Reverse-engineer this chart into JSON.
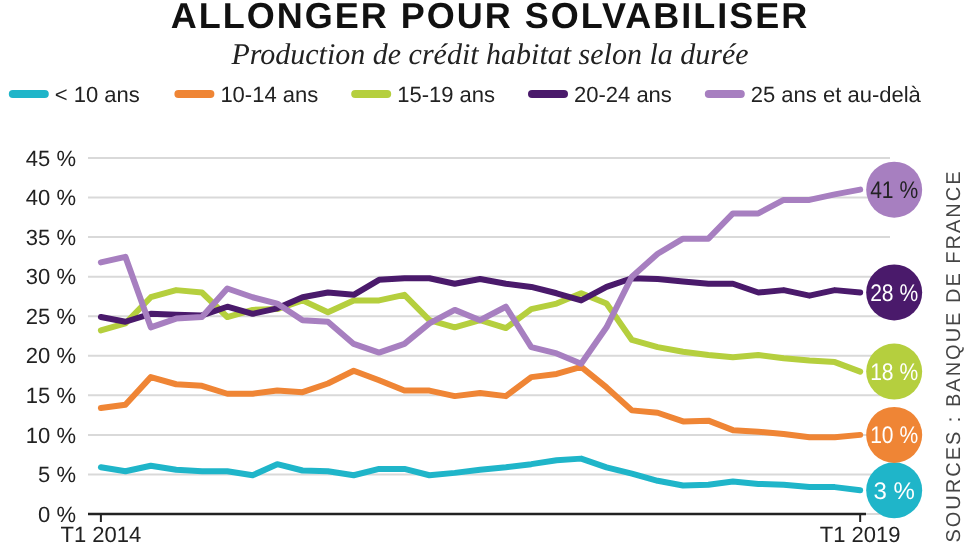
{
  "chart_data": {
    "type": "line",
    "title": "ALLONGER POUR SOLVABILISER",
    "subtitle": "Production de crédit habitat selon la durée",
    "x": [
      "2014-01",
      "2014-03",
      "2014-05",
      "2014-07",
      "2014-09",
      "2014-11",
      "2015-01",
      "2015-03",
      "2015-05",
      "2015-07",
      "2015-09",
      "2015-11",
      "2016-01",
      "2016-03",
      "2016-05",
      "2016-07",
      "2016-09",
      "2016-11",
      "2017-01",
      "2017-03",
      "2017-05",
      "2017-07",
      "2017-09",
      "2017-11",
      "2018-01",
      "2018-03",
      "2018-05",
      "2018-07",
      "2018-09",
      "2018-11",
      "2019-01"
    ],
    "series": [
      {
        "name": "< 10 ans",
        "color": "#1fb5c9",
        "values": [
          5.9,
          5.4,
          6.1,
          5.6,
          5.4,
          5.4,
          4.9,
          6.3,
          5.5,
          5.4,
          4.9,
          5.7,
          5.7,
          4.9,
          5.2,
          5.6,
          5.9,
          6.3,
          6.8,
          7.0,
          5.9,
          5.1,
          4.2,
          3.6,
          3.7,
          4.1,
          3.8,
          3.7,
          3.4,
          3.4,
          3
        ],
        "value_labels": [
          null,
          null,
          null,
          null,
          null,
          null,
          null,
          null,
          null,
          null,
          null,
          null,
          null,
          null,
          null,
          null,
          null,
          null,
          null,
          null,
          null,
          null,
          null,
          null,
          null,
          null,
          null,
          null,
          null,
          null,
          "3 %"
        ]
      },
      {
        "name": "10-14 ans",
        "color": "#ef8535",
        "values": [
          13.4,
          13.8,
          17.3,
          16.4,
          16.2,
          15.2,
          15.2,
          15.6,
          15.4,
          16.5,
          18.1,
          16.9,
          15.6,
          15.6,
          14.9,
          15.3,
          14.9,
          17.3,
          17.7,
          18.6,
          16.0,
          13.1,
          12.8,
          11.7,
          11.8,
          10.6,
          10.4,
          10.1,
          9.7,
          9.7,
          10
        ],
        "value_labels": [
          null,
          null,
          null,
          null,
          null,
          null,
          null,
          null,
          null,
          null,
          null,
          null,
          null,
          null,
          null,
          null,
          null,
          null,
          null,
          null,
          null,
          null,
          null,
          null,
          null,
          null,
          null,
          null,
          null,
          null,
          "10 %"
        ]
      },
      {
        "name": "15-19 ans",
        "color": "#b5cf3e",
        "values": [
          23.2,
          24.1,
          27.4,
          28.3,
          28.0,
          24.9,
          25.8,
          25.9,
          27.0,
          25.5,
          27.0,
          27.0,
          27.7,
          24.5,
          23.6,
          24.5,
          23.5,
          25.9,
          26.6,
          27.9,
          26.6,
          22.0,
          21.1,
          20.5,
          20.1,
          19.8,
          20.1,
          19.7,
          19.4,
          19.2,
          18
        ],
        "value_labels": [
          null,
          null,
          null,
          null,
          null,
          null,
          null,
          null,
          null,
          null,
          null,
          null,
          null,
          null,
          null,
          null,
          null,
          null,
          null,
          null,
          null,
          null,
          null,
          null,
          null,
          null,
          null,
          null,
          null,
          null,
          "18 %"
        ]
      },
      {
        "name": "20-24 ans",
        "color": "#4a1a6b",
        "values": [
          24.9,
          24.3,
          25.3,
          25.2,
          25.1,
          26.2,
          25.3,
          26.0,
          27.4,
          28.0,
          27.7,
          29.6,
          29.8,
          29.8,
          29.1,
          29.7,
          29.1,
          28.7,
          27.9,
          27.0,
          28.7,
          29.8,
          29.7,
          29.4,
          29.1,
          29.1,
          28.0,
          28.3,
          27.6,
          28.3,
          28
        ],
        "value_labels": [
          null,
          null,
          null,
          null,
          null,
          null,
          null,
          null,
          null,
          null,
          null,
          null,
          null,
          null,
          null,
          null,
          null,
          null,
          null,
          null,
          null,
          null,
          null,
          null,
          null,
          null,
          null,
          null,
          null,
          null,
          "28 %"
        ]
      },
      {
        "name": "25 ans et au-delà",
        "color": "#a77fc0",
        "values": [
          31.8,
          32.5,
          23.6,
          24.7,
          24.9,
          28.5,
          27.4,
          26.6,
          24.5,
          24.3,
          21.5,
          20.4,
          21.5,
          24.1,
          25.8,
          24.5,
          26.2,
          21.1,
          20.3,
          19.0,
          23.6,
          30.0,
          32.9,
          34.8,
          34.8,
          38.0,
          38.0,
          39.7,
          39.7,
          40.4,
          41
        ],
        "value_labels": [
          null,
          null,
          null,
          null,
          null,
          null,
          null,
          null,
          null,
          null,
          null,
          null,
          null,
          null,
          null,
          null,
          null,
          null,
          null,
          null,
          null,
          null,
          null,
          null,
          null,
          null,
          null,
          null,
          null,
          null,
          "41 %"
        ]
      }
    ],
    "xlim": [
      "2013-12",
      "2019-01-15"
    ],
    "xticks": [
      {
        "value": "2014-01",
        "label": "T1 2014"
      },
      {
        "value": "2019-01",
        "label": "T1 2019"
      }
    ],
    "ylim": [
      0,
      45
    ],
    "yticks": [
      {
        "value": 0,
        "label": "0 %"
      },
      {
        "value": 5,
        "label": "5 %"
      },
      {
        "value": 10,
        "label": "10 %"
      },
      {
        "value": 15,
        "label": "15 %"
      },
      {
        "value": 20,
        "label": "20 %"
      },
      {
        "value": 25,
        "label": "25 %"
      },
      {
        "value": 30,
        "label": "30 %"
      },
      {
        "value": 35,
        "label": "35 %"
      },
      {
        "value": 40,
        "label": "40 %"
      },
      {
        "value": 45,
        "label": "45 %"
      }
    ],
    "grid": "y",
    "legend": "top",
    "marker": "none",
    "line_style": "solid",
    "annotations": [
      "SOURCES : BANQUE DE FRANCE"
    ]
  }
}
